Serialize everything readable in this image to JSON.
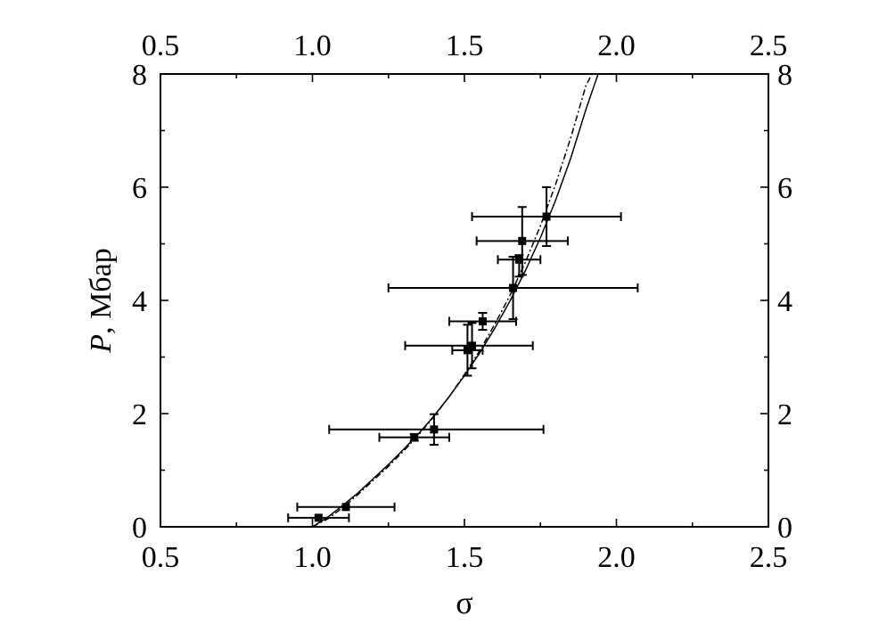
{
  "chart_data": {
    "type": "scatter",
    "xlabel": "σ",
    "ylabel_symbol": "P",
    "ylabel_rest": ", Мбар",
    "xlim": [
      0.5,
      2.5
    ],
    "ylim": [
      0,
      8
    ],
    "x_ticks": [
      "0.5",
      "1.0",
      "1.5",
      "2.0",
      "2.5"
    ],
    "x_tick_values": [
      0.5,
      1.0,
      1.5,
      2.0,
      2.5
    ],
    "y_ticks": [
      "0",
      "2",
      "4",
      "6",
      "8"
    ],
    "y_tick_values": [
      0,
      2,
      4,
      6,
      8
    ],
    "grid": false,
    "points": [
      {
        "x": 1.02,
        "y": 0.16,
        "xerr_lo": 0.1,
        "xerr_hi": 0.1,
        "yerr_lo": 0.0,
        "yerr_hi": 0.0
      },
      {
        "x": 1.11,
        "y": 0.35,
        "xerr_lo": 0.16,
        "xerr_hi": 0.16,
        "yerr_lo": 0.0,
        "yerr_hi": 0.0
      },
      {
        "x": 1.335,
        "y": 1.58,
        "xerr_lo": 0.115,
        "xerr_hi": 0.115,
        "yerr_lo": 0.06,
        "yerr_hi": 0.06
      },
      {
        "x": 1.4,
        "y": 1.72,
        "xerr_lo": 0.345,
        "xerr_hi": 0.36,
        "yerr_lo": 0.27,
        "yerr_hi": 0.27
      },
      {
        "x": 1.51,
        "y": 3.12,
        "xerr_lo": 0.05,
        "xerr_hi": 0.05,
        "yerr_lo": 0.45,
        "yerr_hi": 0.45
      },
      {
        "x": 1.525,
        "y": 3.2,
        "xerr_lo": 0.22,
        "xerr_hi": 0.2,
        "yerr_lo": 0.4,
        "yerr_hi": 0.4
      },
      {
        "x": 1.56,
        "y": 3.63,
        "xerr_lo": 0.11,
        "xerr_hi": 0.11,
        "yerr_lo": 0.15,
        "yerr_hi": 0.15
      },
      {
        "x": 1.66,
        "y": 4.22,
        "xerr_lo": 0.41,
        "xerr_hi": 0.41,
        "yerr_lo": 0.55,
        "yerr_hi": 0.55
      },
      {
        "x": 1.68,
        "y": 4.72,
        "xerr_lo": 0.07,
        "xerr_hi": 0.07,
        "yerr_lo": 0.3,
        "yerr_hi": 0.08
      },
      {
        "x": 1.69,
        "y": 5.05,
        "xerr_lo": 0.15,
        "xerr_hi": 0.15,
        "yerr_lo": 0.6,
        "yerr_hi": 0.6
      },
      {
        "x": 1.77,
        "y": 5.48,
        "xerr_lo": 0.245,
        "xerr_hi": 0.245,
        "yerr_lo": 0.52,
        "yerr_hi": 0.52
      }
    ],
    "curves": [
      {
        "style": "solid",
        "x": [
          1.0,
          1.05,
          1.1,
          1.15,
          1.2,
          1.25,
          1.3,
          1.35,
          1.4,
          1.45,
          1.5,
          1.55,
          1.6,
          1.65,
          1.7,
          1.75,
          1.8,
          1.85,
          1.9,
          1.94
        ],
        "y": [
          0.0,
          0.17,
          0.38,
          0.6,
          0.85,
          1.1,
          1.37,
          1.65,
          1.96,
          2.3,
          2.67,
          3.07,
          3.51,
          3.99,
          4.52,
          5.11,
          5.77,
          6.52,
          7.38,
          8.0
        ]
      },
      {
        "style": "dashdot",
        "x": [
          1.0,
          1.05,
          1.1,
          1.15,
          1.2,
          1.25,
          1.3,
          1.35,
          1.4,
          1.45,
          1.5,
          1.55,
          1.6,
          1.65,
          1.7,
          1.75,
          1.8,
          1.85,
          1.9,
          1.92
        ],
        "y": [
          0.0,
          0.14,
          0.34,
          0.57,
          0.82,
          1.07,
          1.34,
          1.63,
          1.95,
          2.3,
          2.69,
          3.11,
          3.58,
          4.09,
          4.67,
          5.32,
          6.05,
          6.88,
          7.8,
          8.0
        ]
      }
    ]
  }
}
